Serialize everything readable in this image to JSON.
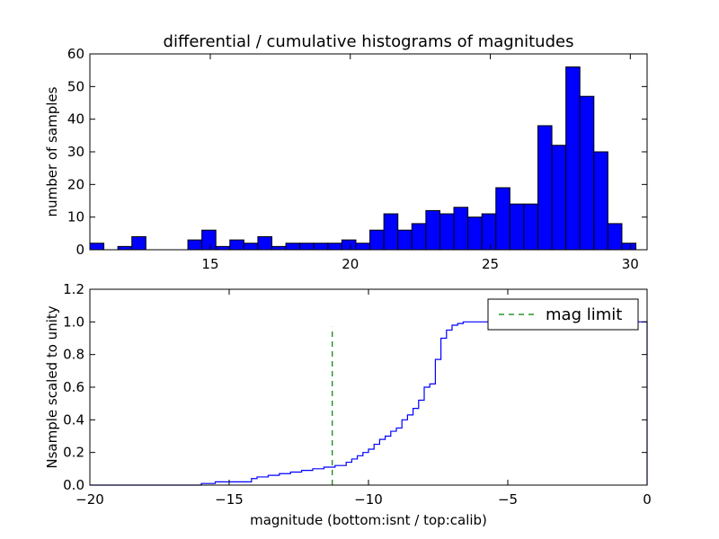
{
  "chart_data": [
    {
      "type": "histogram",
      "title": "differential / cumulative histograms of magnitudes",
      "ylabel": "number of samples",
      "bins": [
        10.7,
        11.2,
        11.7,
        12.2,
        12.7,
        13.2,
        13.7,
        14.2,
        14.7,
        15.2,
        15.7,
        16.2,
        16.7,
        17.2,
        17.7,
        18.2,
        18.7,
        19.2,
        19.7,
        20.2,
        20.7,
        21.2,
        21.7,
        22.2,
        22.7,
        23.2,
        23.7,
        24.2,
        24.7,
        25.2,
        25.7,
        26.2,
        26.7,
        27.2,
        27.7,
        28.2,
        28.7,
        29.2,
        29.7,
        30.2
      ],
      "values": [
        2,
        0,
        1,
        4,
        0,
        0,
        0,
        3,
        6,
        1,
        3,
        2,
        4,
        1,
        2,
        2,
        2,
        2,
        3,
        2,
        6,
        11,
        6,
        8,
        12,
        11,
        13,
        10,
        11,
        19,
        14,
        14,
        38,
        32,
        56,
        47,
        30,
        8,
        2
      ],
      "color": "#0000ff",
      "xlim": [
        10.7,
        30.6
      ],
      "xticks": [
        15,
        20,
        25,
        30
      ],
      "ylim": [
        0,
        60
      ],
      "yticks": [
        0,
        10,
        20,
        30,
        40,
        50,
        60
      ]
    },
    {
      "type": "line",
      "drawstyle": "steps-post",
      "xlabel": "magnitude (bottom:isnt / top:calib)",
      "ylabel": "Nsample scaled to unity",
      "xlim": [
        -20,
        0
      ],
      "xticks": [
        {
          "value": -20,
          "label": "−20"
        },
        {
          "value": -15,
          "label": "−15"
        },
        {
          "value": -10,
          "label": "−10"
        },
        {
          "value": -5,
          "label": "−5"
        },
        0
      ],
      "ylim": [
        0,
        1.2
      ],
      "yticks": [
        {
          "value": 0,
          "label": "0.0"
        },
        {
          "value": 0.2,
          "label": "0.2"
        },
        {
          "value": 0.4,
          "label": "0.4"
        },
        {
          "value": 0.6,
          "label": "0.6"
        },
        {
          "value": 0.8,
          "label": "0.8"
        },
        {
          "value": 1.0,
          "label": "1.0"
        },
        {
          "value": 1.2,
          "label": "1.2"
        }
      ],
      "legend": "upper right",
      "series": [
        {
          "color": "#0000ff",
          "x": [
            -20,
            -16,
            -15.5,
            -14.2,
            -14,
            -13.6,
            -13.2,
            -12.8,
            -12.4,
            -12,
            -11.6,
            -11.2,
            -10.8,
            -10.6,
            -10.4,
            -10.2,
            -10,
            -9.8,
            -9.6,
            -9.4,
            -9.2,
            -9,
            -8.8,
            -8.6,
            -8.4,
            -8.2,
            -8,
            -7.8,
            -7.6,
            -7.4,
            -7.2,
            -7,
            -6.8,
            -6.6,
            -6.4,
            0,
            0
          ],
          "values": [
            0,
            0.01,
            0.02,
            0.04,
            0.05,
            0.06,
            0.07,
            0.08,
            0.09,
            0.1,
            0.11,
            0.12,
            0.14,
            0.16,
            0.18,
            0.2,
            0.22,
            0.25,
            0.28,
            0.3,
            0.33,
            0.35,
            0.4,
            0.43,
            0.47,
            0.52,
            0.6,
            0.62,
            0.77,
            0.9,
            0.95,
            0.98,
            0.99,
            1.0,
            1.0,
            1.0,
            0
          ]
        },
        {
          "name": "mag limit",
          "color": "#008000",
          "dashed": true,
          "x": [
            -11.3,
            -11.3
          ],
          "values": [
            0,
            0.97
          ]
        }
      ]
    }
  ]
}
